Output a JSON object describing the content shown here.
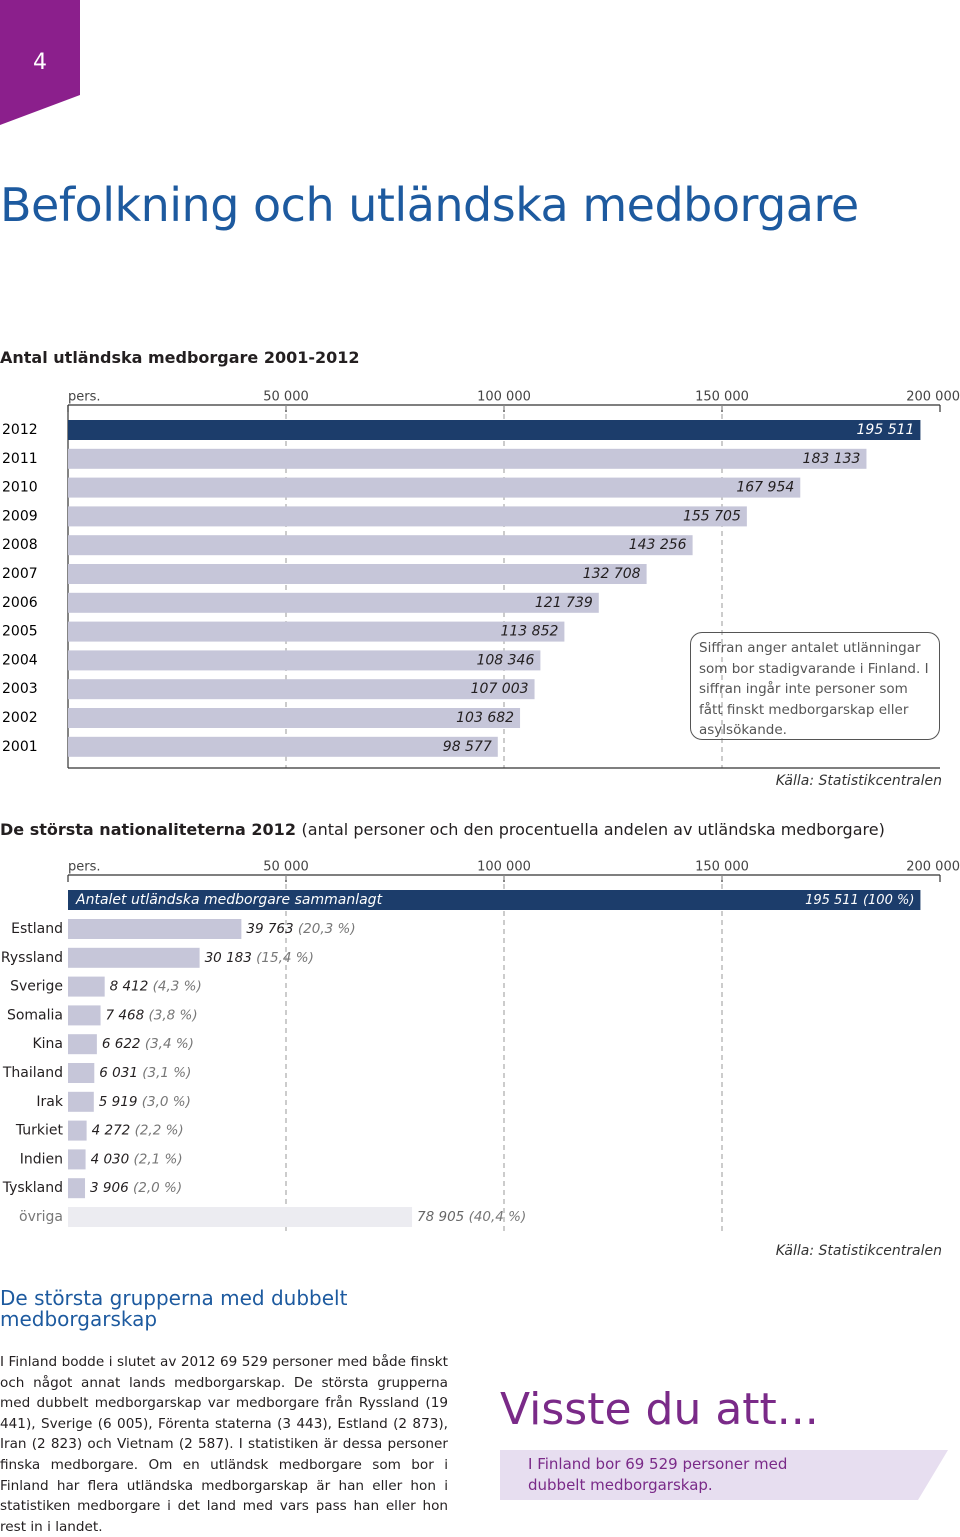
{
  "page": {
    "number": "4",
    "title": "Befolkning och utländska medborgare"
  },
  "chart_data": [
    {
      "type": "bar",
      "orientation": "horizontal",
      "title": "Antal utländska medborgare 2001-2012",
      "categories": [
        "2012",
        "2011",
        "2010",
        "2009",
        "2008",
        "2007",
        "2006",
        "2005",
        "2004",
        "2003",
        "2002",
        "2001"
      ],
      "values": [
        195511,
        183133,
        167954,
        155705,
        143256,
        132708,
        121739,
        113852,
        108346,
        107003,
        103682,
        98577
      ],
      "value_labels": [
        "195 511",
        "183 133",
        "167 954",
        "155 705",
        "143 256",
        "132 708",
        "121 739",
        "113 852",
        "108 346",
        "107 003",
        "103 682",
        "98 577"
      ],
      "colors": [
        "#1c3d6b",
        "#c6c6d9",
        "#c6c6d9",
        "#c6c6d9",
        "#c6c6d9",
        "#c6c6d9",
        "#c6c6d9",
        "#c6c6d9",
        "#c6c6d9",
        "#c6c6d9",
        "#c6c6d9",
        "#c6c6d9"
      ],
      "xlim": [
        0,
        200000
      ],
      "xticks": [
        {
          "value": 0,
          "label": "pers."
        },
        {
          "value": 50000,
          "label": "50 000"
        },
        {
          "value": 100000,
          "label": "100 000"
        },
        {
          "value": 150000,
          "label": "150 000"
        },
        {
          "value": 200000,
          "label": "200 000"
        }
      ],
      "grid": true,
      "note": "Siffran anger antalet utlänningar som bor stadigvarande i Finland. I siffran ingår inte personer som fått finskt medborgarskap eller asylsökande.",
      "source": "Källa: Statistikcentralen"
    },
    {
      "type": "bar",
      "orientation": "horizontal",
      "title": "De största nationaliteterna 2012",
      "subtitle": "(antal personer och den procentuella andelen av utländska medborgare)",
      "total": {
        "label": "Antalet utländska medborgare sammanlagt",
        "value": 195511,
        "value_label": "195  511",
        "percent": 100,
        "percent_label": "(100 %)",
        "color": "#1c3d6b"
      },
      "categories": [
        "Estland",
        "Ryssland",
        "Sverige",
        "Somalia",
        "Kina",
        "Thailand",
        "Irak",
        "Turkiet",
        "Indien",
        "Tyskland",
        "övriga"
      ],
      "values": [
        39763,
        30183,
        8412,
        7468,
        6622,
        6031,
        5919,
        4272,
        4030,
        3906,
        78905
      ],
      "value_labels": [
        "39 763",
        "30 183",
        "8 412",
        "7 468",
        "6 622",
        "6 031",
        "5 919",
        "4 272",
        "4 030",
        "3 906",
        "78 905"
      ],
      "percents": [
        20.3,
        15.4,
        4.3,
        3.8,
        3.4,
        3.1,
        3.0,
        2.2,
        2.1,
        2.0,
        40.4
      ],
      "percent_labels": [
        "(20,3 %)",
        "(15,4 %)",
        "(4,3 %)",
        "(3,8 %)",
        "(3,4 %)",
        "(3,1 %)",
        "(3,0 %)",
        "(2,2 %)",
        "(2,1 %)",
        "(2,0 %)",
        "(40,4 %)"
      ],
      "colors": [
        "#c6c6d9",
        "#c6c6d9",
        "#c6c6d9",
        "#c6c6d9",
        "#c6c6d9",
        "#c6c6d9",
        "#c6c6d9",
        "#c6c6d9",
        "#c6c6d9",
        "#c6c6d9",
        "#ececf1"
      ],
      "xlim": [
        0,
        200000
      ],
      "xticks": [
        {
          "value": 0,
          "label": "pers."
        },
        {
          "value": 50000,
          "label": "50 000"
        },
        {
          "value": 100000,
          "label": "100 000"
        },
        {
          "value": 150000,
          "label": "150 000"
        },
        {
          "value": 200000,
          "label": "200 000"
        }
      ],
      "grid": true,
      "source": "Källa: Statistikcentralen"
    }
  ],
  "section": {
    "heading": "De största grupperna med dubbelt medborgarskap",
    "body": "I Finland bodde i slutet av 2012 69 529 personer med både finskt och något annat lands medborgarskap. De största grupperna med dubbelt medborgarskap var medborgare från Ryssland (19 441), Sverige (6 005), Förenta staterna (3 443), Estland (2 873), Iran (2 823) och Vietnam (2 587). I statistiken är dessa personer finska medborgare. Om en utländsk medborgare som bor i Finland har flera utländska medborgarskap är han eller hon i statistiken medborgare i det land med vars pass han eller hon rest in i landet."
  },
  "fact": {
    "heading": "Visste du att...",
    "text": "I Finland bor 69 529 personer med dubbelt medborgarskap."
  }
}
